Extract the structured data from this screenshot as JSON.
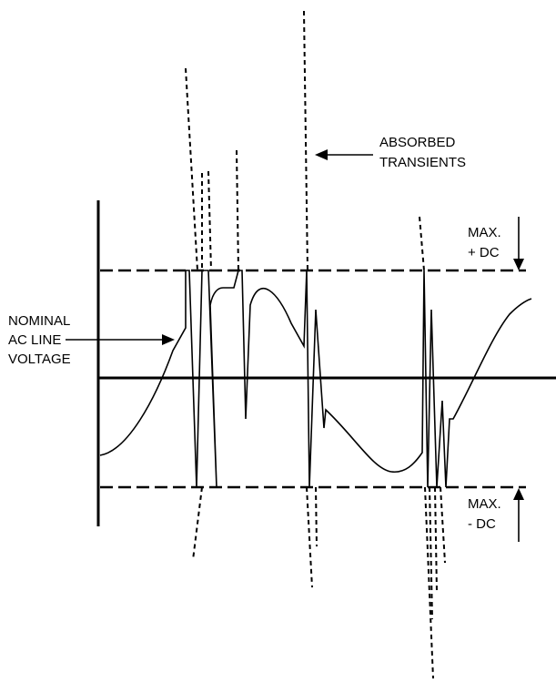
{
  "labels": {
    "absorbed_transients": [
      "ABSORBED",
      "TRANSIENTS"
    ],
    "max_pos_dc": [
      "MAX.",
      "+ DC"
    ],
    "max_neg_dc": [
      "MAX.",
      "- DC"
    ],
    "nominal_ac_line_voltage": [
      "NOMINAL",
      "AC LINE",
      "VOLTAGE"
    ]
  }
}
